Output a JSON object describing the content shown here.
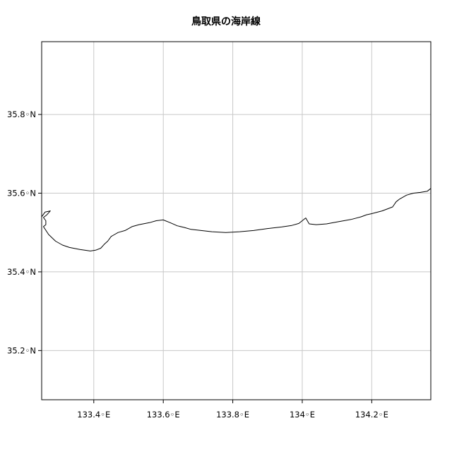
{
  "title": "鳥取県の海岸線",
  "map": {
    "lon_range": [
      133.25,
      134.37
    ],
    "lat_range": [
      35.075,
      35.985
    ],
    "grid": true,
    "x_ticks": [
      {
        "value": 133.4,
        "label": "133.4◦E"
      },
      {
        "value": 133.6,
        "label": "133.6◦E"
      },
      {
        "value": 133.8,
        "label": "133.8◦E"
      },
      {
        "value": 134.0,
        "label": "134◦E"
      },
      {
        "value": 134.2,
        "label": "134.2◦E"
      }
    ],
    "y_ticks": [
      {
        "value": 35.2,
        "label": "35.2◦N"
      },
      {
        "value": 35.4,
        "label": "35.4◦N"
      },
      {
        "value": 35.6,
        "label": "35.6◦N"
      },
      {
        "value": 35.8,
        "label": "35.8◦N"
      }
    ],
    "colors": {
      "coastline": "#000000",
      "grid": "#c8c8c8",
      "frame": "#000000"
    },
    "coastline": [
      [
        133.25,
        35.54
      ],
      [
        133.26,
        35.552
      ],
      [
        133.275,
        35.555
      ],
      [
        133.265,
        35.545
      ],
      [
        133.255,
        35.538
      ],
      [
        133.262,
        35.53
      ],
      [
        133.262,
        35.52
      ],
      [
        133.255,
        35.515
      ],
      [
        133.27,
        35.495
      ],
      [
        133.29,
        35.478
      ],
      [
        133.31,
        35.468
      ],
      [
        133.33,
        35.462
      ],
      [
        133.36,
        35.457
      ],
      [
        133.39,
        35.453
      ],
      [
        133.405,
        35.455
      ],
      [
        133.42,
        35.46
      ],
      [
        133.43,
        35.47
      ],
      [
        133.44,
        35.478
      ],
      [
        133.45,
        35.49
      ],
      [
        133.46,
        35.495
      ],
      [
        133.47,
        35.5
      ],
      [
        133.49,
        35.505
      ],
      [
        133.51,
        35.515
      ],
      [
        133.53,
        35.52
      ],
      [
        133.56,
        35.525
      ],
      [
        133.58,
        35.53
      ],
      [
        133.6,
        35.532
      ],
      [
        133.62,
        35.525
      ],
      [
        133.64,
        35.517
      ],
      [
        133.66,
        35.513
      ],
      [
        133.68,
        35.508
      ],
      [
        133.7,
        35.506
      ],
      [
        133.74,
        35.502
      ],
      [
        133.78,
        35.5
      ],
      [
        133.82,
        35.502
      ],
      [
        133.86,
        35.505
      ],
      [
        133.9,
        35.51
      ],
      [
        133.94,
        35.514
      ],
      [
        133.97,
        35.518
      ],
      [
        133.99,
        35.523
      ],
      [
        134.0,
        35.53
      ],
      [
        134.01,
        35.537
      ],
      [
        134.02,
        35.522
      ],
      [
        134.04,
        35.52
      ],
      [
        134.07,
        35.522
      ],
      [
        134.1,
        35.527
      ],
      [
        134.14,
        35.533
      ],
      [
        134.17,
        35.54
      ],
      [
        134.185,
        35.545
      ],
      [
        134.2,
        35.548
      ],
      [
        134.23,
        35.555
      ],
      [
        134.26,
        35.565
      ],
      [
        134.27,
        35.578
      ],
      [
        134.28,
        35.585
      ],
      [
        134.3,
        35.595
      ],
      [
        134.32,
        35.6
      ],
      [
        134.34,
        35.602
      ],
      [
        134.36,
        35.605
      ],
      [
        134.37,
        35.612
      ]
    ]
  }
}
